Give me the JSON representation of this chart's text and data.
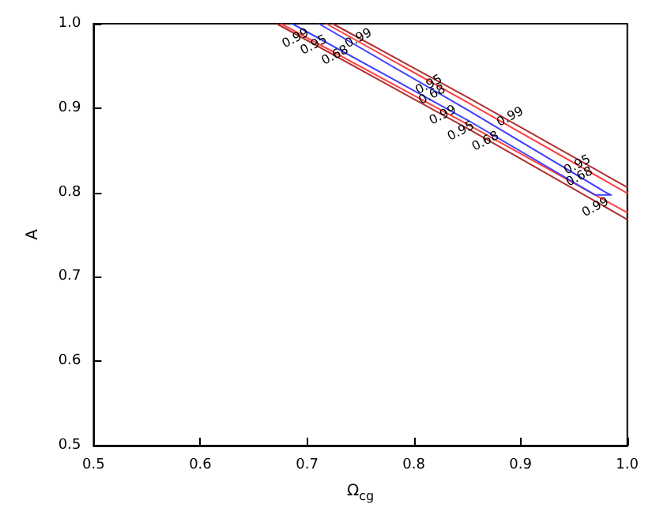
{
  "chart_data": {
    "type": "line",
    "xlabel": "Ω$_{cg}$",
    "ylabel": "A",
    "xlim": [
      0.5,
      1.0
    ],
    "ylim": [
      0.5,
      1.0
    ],
    "xticks": [
      0.5,
      0.6,
      0.7,
      0.8,
      0.9,
      {
        "value": 1,
        "label": "1.0"
      }
    ],
    "yticks": [
      0.5,
      0.6,
      0.7,
      0.8,
      0.9,
      {
        "value": 1,
        "label": "1.0"
      }
    ],
    "grid": false,
    "marker": "none",
    "line_style": "solid",
    "series": [
      {
        "color": "#b03030",
        "x": [
          0.724,
          0.85,
          1.0,
          null,
          0.6715,
          0.85,
          1.0
        ],
        "values": [
          1.0,
          0.913,
          0.806,
          null,
          1.0,
          0.876,
          0.768
        ]
      },
      {
        "color": "#ff4040",
        "x": [
          0.718,
          0.85,
          1.0,
          null,
          0.6755,
          0.85,
          1.0
        ],
        "values": [
          1.0,
          0.907,
          0.799,
          null,
          1.0,
          0.881,
          0.776
        ]
      },
      {
        "color": "#4040ff",
        "x": [
          0.711,
          0.85,
          0.98,
          0.985,
          0.97,
          0.85,
          0.686
        ],
        "values": [
          1.0,
          0.898,
          0.8,
          0.797,
          0.797,
          0.886,
          1.0
        ]
      }
    ],
    "annotations": [
      {
        "text": "0.99",
        "x": 0.689,
        "y": 0.983
      },
      {
        "text": "0.95",
        "x": 0.706,
        "y": 0.975
      },
      {
        "text": "0.68",
        "x": 0.726,
        "y": 0.963
      },
      {
        "text": "0.99",
        "x": 0.748,
        "y": 0.983
      },
      {
        "text": "0.95",
        "x": 0.814,
        "y": 0.928
      },
      {
        "text": "0.68",
        "x": 0.817,
        "y": 0.916
      },
      {
        "text": "0.99",
        "x": 0.827,
        "y": 0.892
      },
      {
        "text": "0.95",
        "x": 0.844,
        "y": 0.873
      },
      {
        "text": "0.68",
        "x": 0.867,
        "y": 0.861
      },
      {
        "text": "0.99",
        "x": 0.89,
        "y": 0.89
      },
      {
        "text": "0.95",
        "x": 0.953,
        "y": 0.833
      },
      {
        "text": "0.68",
        "x": 0.955,
        "y": 0.819
      },
      {
        "text": "0.99",
        "x": 0.97,
        "y": 0.783
      }
    ]
  }
}
